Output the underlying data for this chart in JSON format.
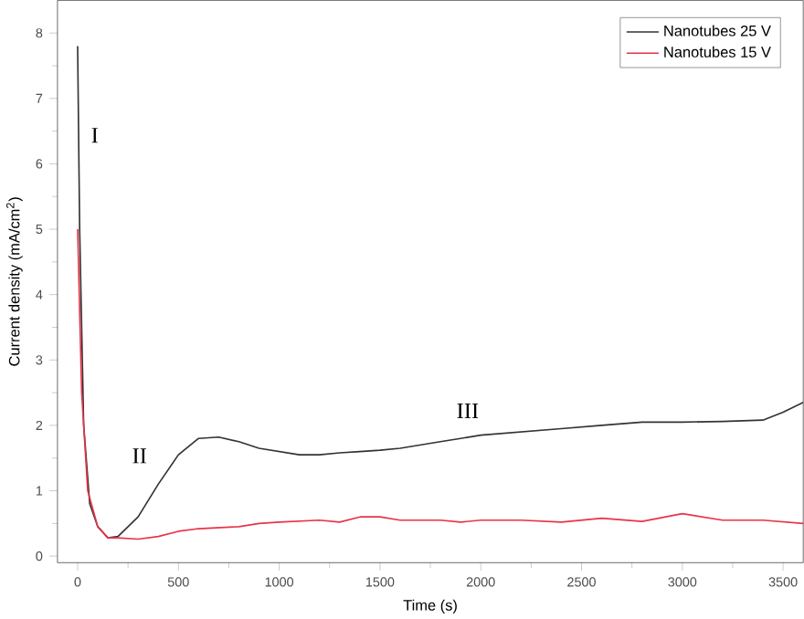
{
  "chart_data": {
    "type": "line",
    "xlabel": "Time (s)",
    "ylabel": "Current density (mA/cm$^{2}$)",
    "xlim": [
      -100,
      3600
    ],
    "ylim": [
      -0.1,
      8.5
    ],
    "xticks": [
      0,
      500,
      1000,
      1500,
      2000,
      2500,
      3000,
      3500
    ],
    "yticks": [
      0,
      1,
      2,
      3,
      4,
      5,
      6,
      7,
      8
    ],
    "legend": "top right",
    "marker": "none",
    "line_style": "solid",
    "grid": false,
    "annotations": [
      "I",
      "II",
      "III"
    ],
    "series": [
      {
        "name": "Nanotubes 25 V",
        "color": "#333333",
        "x": [
          0,
          10,
          30,
          60,
          100,
          150,
          200,
          300,
          400,
          500,
          600,
          700,
          800,
          900,
          1000,
          1100,
          1200,
          1300,
          1400,
          1500,
          1600,
          1700,
          1800,
          1900,
          2000,
          2200,
          2400,
          2600,
          2800,
          3000,
          3200,
          3400,
          3500,
          3600
        ],
        "values": [
          7.8,
          5,
          2,
          0.8,
          0.45,
          0.28,
          0.3,
          0.6,
          1.1,
          1.55,
          1.8,
          1.82,
          1.75,
          1.65,
          1.6,
          1.55,
          1.55,
          1.58,
          1.6,
          1.62,
          1.65,
          1.7,
          1.75,
          1.8,
          1.85,
          1.9,
          1.95,
          2.0,
          2.05,
          2.05,
          2.06,
          2.08,
          2.2,
          2.35
        ]
      },
      {
        "name": "Nanotubes 15 V",
        "color": "#e8334a",
        "x": [
          0,
          20,
          50,
          100,
          150,
          200,
          300,
          400,
          500,
          600,
          800,
          900,
          1000,
          1200,
          1300,
          1400,
          1500,
          1600,
          1800,
          1900,
          2000,
          2200,
          2400,
          2600,
          2800,
          3000,
          3200,
          3400,
          3600
        ],
        "values": [
          5,
          2.5,
          1.0,
          0.45,
          0.28,
          0.28,
          0.26,
          0.3,
          0.38,
          0.42,
          0.45,
          0.5,
          0.52,
          0.55,
          0.52,
          0.6,
          0.6,
          0.55,
          0.55,
          0.52,
          0.55,
          0.55,
          0.52,
          0.58,
          0.53,
          0.65,
          0.55,
          0.55,
          0.5
        ]
      }
    ]
  }
}
